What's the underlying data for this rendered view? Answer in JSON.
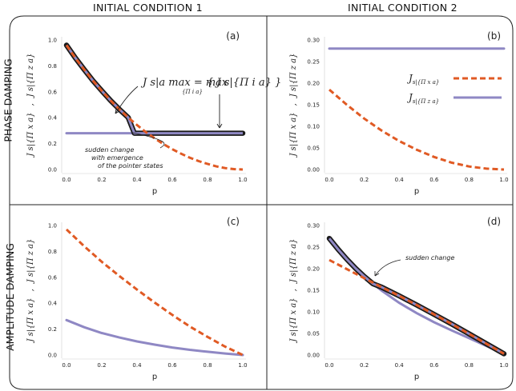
{
  "headers": {
    "col1": "INITIAL CONDITION 1",
    "col2": "INITIAL CONDITION 2",
    "row1": "PHASE DAMPING",
    "row2": "AMPLITUDE DAMPING"
  },
  "colors": {
    "dashed_series": "#e05a24",
    "solid_series": "#8f88c4",
    "max_outline": "#1a1a1a"
  },
  "legend": {
    "entries": [
      {
        "main": "J",
        "sub": "s|{Π x a}",
        "style": "dashed"
      },
      {
        "main": "J",
        "sub": "s|{Π z a}",
        "style": "solid"
      }
    ]
  },
  "annotations": {
    "a_formula_lhs": "J s|a max = max",
    "a_formula_under": "{Π i a}",
    "a_formula_rhs": "{ J s|{Π i a} }",
    "a_sudden": [
      "sudden change",
      "with emergence",
      "of the pointer states"
    ],
    "d_sudden": "sudden change"
  },
  "ylabel": {
    "first": "J s|{Π x a}",
    "sep": ",",
    "second": "J s|{Π z a}"
  },
  "chart_data": [
    {
      "type": "line",
      "panel": "(a)",
      "xlabel": "p",
      "xlim": [
        0,
        1
      ],
      "ylim": [
        0,
        1.0
      ],
      "xticks": [
        "0.0",
        "0.2",
        "0.4",
        "0.6",
        "0.8",
        "1.0"
      ],
      "yticks": [
        "0.0",
        "0.2",
        "0.4",
        "0.6",
        "0.8",
        "1.0"
      ],
      "series": [
        {
          "style": "dashed",
          "x": [
            0.0,
            0.05,
            0.1,
            0.15,
            0.2,
            0.25,
            0.3,
            0.35,
            0.4,
            0.45,
            0.5,
            0.55,
            0.6,
            0.65,
            0.7,
            0.75,
            0.8,
            0.85,
            0.9,
            0.95,
            1.0
          ],
          "y": [
            0.96,
            0.862,
            0.772,
            0.686,
            0.608,
            0.533,
            0.465,
            0.401,
            0.343,
            0.289,
            0.241,
            0.196,
            0.157,
            0.122,
            0.091,
            0.065,
            0.043,
            0.024,
            0.011,
            0.003,
            0.0
          ]
        },
        {
          "style": "solid",
          "x": [
            0.0,
            1.0
          ],
          "y": [
            0.28,
            0.28
          ]
        },
        {
          "style": "max",
          "x": [
            0.0,
            0.05,
            0.1,
            0.15,
            0.2,
            0.25,
            0.3,
            0.35,
            0.385,
            0.45,
            0.6,
            0.8,
            1.0
          ],
          "y": [
            0.96,
            0.862,
            0.772,
            0.686,
            0.608,
            0.533,
            0.465,
            0.401,
            0.28,
            0.28,
            0.28,
            0.28,
            0.28
          ]
        }
      ]
    },
    {
      "type": "line",
      "panel": "(b)",
      "xlabel": "p",
      "xlim": [
        0,
        1
      ],
      "ylim": [
        0,
        0.3
      ],
      "xticks": [
        "0.0",
        "0.2",
        "0.4",
        "0.6",
        "0.8",
        "1.0"
      ],
      "yticks": [
        "0.00",
        "0.05",
        "0.10",
        "0.15",
        "0.20",
        "0.25",
        "0.30"
      ],
      "series": [
        {
          "style": "dashed",
          "x": [
            0.0,
            0.1,
            0.2,
            0.3,
            0.4,
            0.5,
            0.6,
            0.7,
            0.8,
            0.9,
            1.0
          ],
          "y": [
            0.185,
            0.15,
            0.118,
            0.09,
            0.066,
            0.046,
            0.029,
            0.016,
            0.007,
            0.002,
            0.0
          ]
        },
        {
          "style": "solid",
          "x": [
            0.0,
            1.0
          ],
          "y": [
            0.28,
            0.28
          ]
        }
      ]
    },
    {
      "type": "line",
      "panel": "(c)",
      "xlabel": "p",
      "xlim": [
        0,
        1
      ],
      "ylim": [
        0,
        1.0
      ],
      "xticks": [
        "0.0",
        "0.2",
        "0.4",
        "0.6",
        "0.8",
        "1.0"
      ],
      "yticks": [
        "0.0",
        "0.2",
        "0.4",
        "0.6",
        "0.8",
        "1.0"
      ],
      "series": [
        {
          "style": "dashed",
          "x": [
            0.0,
            0.1,
            0.2,
            0.3,
            0.4,
            0.5,
            0.6,
            0.7,
            0.8,
            0.9,
            1.0
          ],
          "y": [
            0.97,
            0.84,
            0.72,
            0.61,
            0.505,
            0.405,
            0.31,
            0.22,
            0.14,
            0.065,
            0.0
          ]
        },
        {
          "style": "solid",
          "x": [
            0.0,
            0.1,
            0.2,
            0.3,
            0.4,
            0.5,
            0.6,
            0.7,
            0.8,
            0.9,
            1.0
          ],
          "y": [
            0.27,
            0.215,
            0.17,
            0.135,
            0.105,
            0.08,
            0.058,
            0.04,
            0.025,
            0.012,
            0.0
          ]
        }
      ]
    },
    {
      "type": "line",
      "panel": "(d)",
      "xlabel": "p",
      "xlim": [
        0,
        1
      ],
      "ylim": [
        0,
        0.3
      ],
      "xticks": [
        "0.0",
        "0.2",
        "0.4",
        "0.6",
        "0.8",
        "1.0"
      ],
      "yticks": [
        "0.00",
        "0.05",
        "0.10",
        "0.15",
        "0.20",
        "0.25",
        "0.30"
      ],
      "series": [
        {
          "style": "dashed",
          "x": [
            0.0,
            0.1,
            0.2,
            0.3,
            0.4,
            0.5,
            0.6,
            0.7,
            0.8,
            0.9,
            1.0
          ],
          "y": [
            0.22,
            0.199,
            0.178,
            0.157,
            0.137,
            0.116,
            0.094,
            0.072,
            0.049,
            0.026,
            0.003
          ]
        },
        {
          "style": "solid",
          "x": [
            0.0,
            0.05,
            0.1,
            0.15,
            0.2,
            0.25,
            0.3,
            0.4,
            0.5,
            0.6,
            0.7,
            0.8,
            0.9,
            1.0
          ],
          "y": [
            0.27,
            0.245,
            0.222,
            0.201,
            0.182,
            0.165,
            0.149,
            0.121,
            0.097,
            0.076,
            0.057,
            0.039,
            0.021,
            0.003
          ]
        },
        {
          "style": "max",
          "x": [
            0.0,
            0.05,
            0.1,
            0.15,
            0.2,
            0.25,
            0.3,
            0.4,
            0.5,
            0.6,
            0.7,
            0.8,
            0.9,
            1.0
          ],
          "y": [
            0.27,
            0.245,
            0.222,
            0.201,
            0.182,
            0.165,
            0.157,
            0.137,
            0.116,
            0.094,
            0.072,
            0.049,
            0.026,
            0.003
          ]
        }
      ]
    }
  ]
}
